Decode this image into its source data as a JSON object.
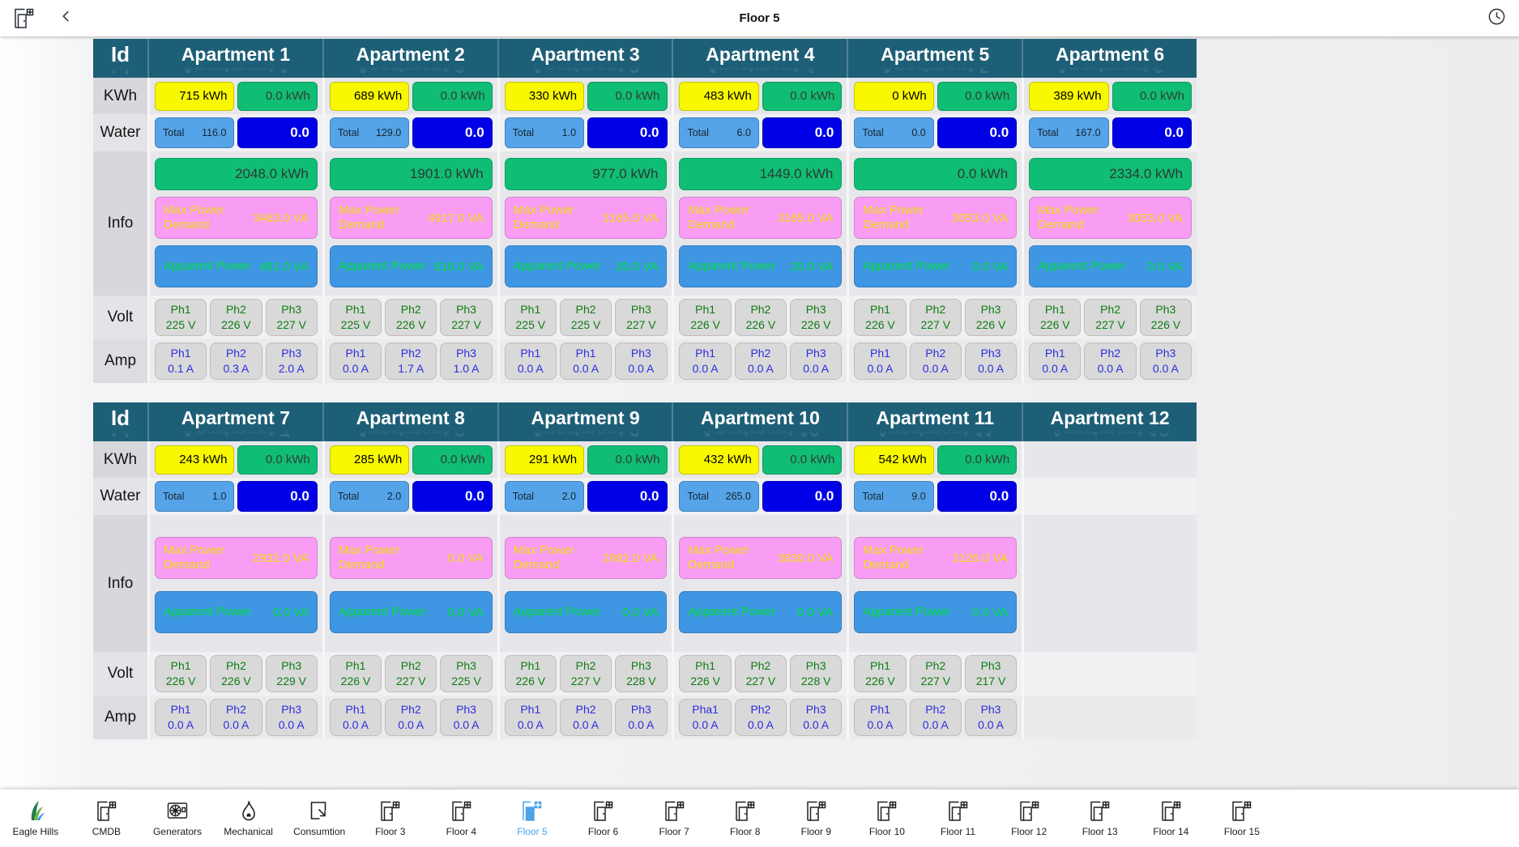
{
  "top_bar": {
    "title": "Floor 5"
  },
  "row_labels": {
    "id": "Id",
    "kwh": "KWh",
    "water": "Water",
    "info": "Info",
    "volt": "Volt",
    "amp": "Amp"
  },
  "labels": {
    "water_total": "Total",
    "max_power": "Max Power Demand",
    "apparent_power": "Apparent Power"
  },
  "colors": {
    "header_teal": "#1e5f78",
    "kwh_yellow": "#f8f800",
    "kwh_green": "#10bd74",
    "water_light_blue": "#55a4e9",
    "water_dark_blue": "#0000e6",
    "max_power_pink": "#f99cf4",
    "max_power_text": "#efdf10",
    "apparent_blue": "#3f96e3",
    "apparent_text": "#00e23c",
    "volt_text": "#0e7d13",
    "amp_text": "#2d2de0",
    "active_nav": "#4da3e8"
  },
  "tables": [
    {
      "has_energy_bar": true,
      "apartments": [
        {
          "name": "Apartment 1",
          "kwh_primary": "715 kWh",
          "kwh_secondary": "0.0 kWh",
          "water_total": "116.0",
          "water_value": "0.0",
          "energy": "2048.0 kWh",
          "max_power": "3463.0 VA",
          "apparent_power": "481.0 VA",
          "volt": [
            [
              "Ph1",
              "225 V"
            ],
            [
              "Ph2",
              "226 V"
            ],
            [
              "Ph3",
              "227 V"
            ]
          ],
          "amp": [
            [
              "Ph1",
              "0.1 A"
            ],
            [
              "Ph2",
              "0.3 A"
            ],
            [
              "Ph3",
              "2.0 A"
            ]
          ]
        },
        {
          "name": "Apartment 2",
          "kwh_primary": "689 kWh",
          "kwh_secondary": "0.0 kWh",
          "water_total": "129.0",
          "water_value": "0.0",
          "energy": "1901.0 kWh",
          "max_power": "4917.0 VA",
          "apparent_power": "616.0 VA",
          "volt": [
            [
              "Ph1",
              "225 V"
            ],
            [
              "Ph2",
              "226 V"
            ],
            [
              "Ph3",
              "227 V"
            ]
          ],
          "amp": [
            [
              "Ph1",
              "0.0 A"
            ],
            [
              "Ph2",
              "1.7 A"
            ],
            [
              "Ph3",
              "1.0 A"
            ]
          ]
        },
        {
          "name": "Apartment 3",
          "kwh_primary": "330 kWh",
          "kwh_secondary": "0.0 kWh",
          "water_total": "1.0",
          "water_value": "0.0",
          "energy": "977.0 kWh",
          "max_power": "3165.0 VA",
          "apparent_power": "20.0 VA",
          "volt": [
            [
              "Ph1",
              "225 V"
            ],
            [
              "Ph2",
              "225 V"
            ],
            [
              "Ph3",
              "227 V"
            ]
          ],
          "amp": [
            [
              "Ph1",
              "0.0 A"
            ],
            [
              "Ph1",
              "0.0 A"
            ],
            [
              "Ph3",
              "0.0 A"
            ]
          ]
        },
        {
          "name": "Apartment 4",
          "kwh_primary": "483 kWh",
          "kwh_secondary": "0.0 kWh",
          "water_total": "6.0",
          "water_value": "0.0",
          "energy": "1449.0 kWh",
          "max_power": "3165.0 VA",
          "apparent_power": "20.0 VA",
          "volt": [
            [
              "Ph1",
              "226 V"
            ],
            [
              "Ph2",
              "226 V"
            ],
            [
              "Ph3",
              "226 V"
            ]
          ],
          "amp": [
            [
              "Ph1",
              "0.0 A"
            ],
            [
              "Ph2",
              "0.0 A"
            ],
            [
              "Ph3",
              "0.0 A"
            ]
          ]
        },
        {
          "name": "Apartment 5",
          "kwh_primary": "0 kWh",
          "kwh_secondary": "0.0 kWh",
          "water_total": "0.0",
          "water_value": "0.0",
          "energy": "0.0 kWh",
          "max_power": "3053.0 VA",
          "apparent_power": "0.0 VA",
          "volt": [
            [
              "Ph1",
              "226 V"
            ],
            [
              "Ph2",
              "227 V"
            ],
            [
              "Ph3",
              "226 V"
            ]
          ],
          "amp": [
            [
              "Ph1",
              "0.0 A"
            ],
            [
              "Ph2",
              "0.0 A"
            ],
            [
              "Ph3",
              "0.0 A"
            ]
          ]
        },
        {
          "name": "Apartment 6",
          "kwh_primary": "389 kWh",
          "kwh_secondary": "0.0 kWh",
          "water_total": "167.0",
          "water_value": "0.0",
          "energy": "2334.0 kWh",
          "max_power": "3053.0 VA",
          "apparent_power": "0.0 VA",
          "volt": [
            [
              "Ph1",
              "226 V"
            ],
            [
              "Ph2",
              "227 V"
            ],
            [
              "Ph3",
              "226 V"
            ]
          ],
          "amp": [
            [
              "Ph1",
              "0.0 A"
            ],
            [
              "Ph2",
              "0.0 A"
            ],
            [
              "Ph3",
              "0.0 A"
            ]
          ]
        }
      ]
    },
    {
      "has_energy_bar": false,
      "apartments": [
        {
          "name": "Apartment 7",
          "kwh_primary": "243 kWh",
          "kwh_secondary": "0.0 kWh",
          "water_total": "1.0",
          "water_value": "0.0",
          "max_power": "2932.0 VA",
          "apparent_power": "0.0 VA",
          "volt": [
            [
              "Ph1",
              "226 V"
            ],
            [
              "Ph2",
              "226 V"
            ],
            [
              "Ph3",
              "229 V"
            ]
          ],
          "amp": [
            [
              "Ph1",
              "0.0 A"
            ],
            [
              "Ph2",
              "0.0 A"
            ],
            [
              "Ph3",
              "0.0 A"
            ]
          ]
        },
        {
          "name": "Apartment 8",
          "kwh_primary": "285 kWh",
          "kwh_secondary": "0.0 kWh",
          "water_total": "2.0",
          "water_value": "0.0",
          "max_power": "0.0 VA",
          "apparent_power": "0.0 VA",
          "volt": [
            [
              "Ph1",
              "226 V"
            ],
            [
              "Ph2",
              "227 V"
            ],
            [
              "Ph3",
              "225 V"
            ]
          ],
          "amp": [
            [
              "Ph1",
              "0.0 A"
            ],
            [
              "Ph2",
              "0.0 A"
            ],
            [
              "Ph3",
              "0.0 A"
            ]
          ]
        },
        {
          "name": "Apartment 9",
          "kwh_primary": "291 kWh",
          "kwh_secondary": "0.0 kWh",
          "water_total": "2.0",
          "water_value": "0.0",
          "max_power": "2982.0 VA",
          "apparent_power": "0.0 VA",
          "volt": [
            [
              "Ph1",
              "226 V"
            ],
            [
              "Ph2",
              "227 V"
            ],
            [
              "Ph3",
              "228 V"
            ]
          ],
          "amp": [
            [
              "Ph1",
              "0.0 A"
            ],
            [
              "Ph2",
              "0.0 A"
            ],
            [
              "Ph3",
              "0.0 A"
            ]
          ]
        },
        {
          "name": "Apartment 10",
          "kwh_primary": "432 kWh",
          "kwh_secondary": "0.0 kWh",
          "water_total": "265.0",
          "water_value": "0.0",
          "max_power": "3830.0 VA",
          "apparent_power": "0.0 VA",
          "volt": [
            [
              "Ph1",
              "226 V"
            ],
            [
              "Ph2",
              "227 V"
            ],
            [
              "Ph3",
              "228 V"
            ]
          ],
          "amp": [
            [
              "Pha1",
              "0.0 A"
            ],
            [
              "Ph2",
              "0.0 A"
            ],
            [
              "Ph3",
              "0.0 A"
            ]
          ]
        },
        {
          "name": "Apartment 11",
          "kwh_primary": "542 kWh",
          "kwh_secondary": "0.0 kWh",
          "water_total": "9.0",
          "water_value": "0.0",
          "max_power": "3126.0 VA",
          "apparent_power": "0.0 VA",
          "volt": [
            [
              "Ph1",
              "226 V"
            ],
            [
              "Ph2",
              "227 V"
            ],
            [
              "Ph3",
              "217 V"
            ]
          ],
          "amp": [
            [
              "Ph1",
              "0.0 A"
            ],
            [
              "Ph2",
              "0.0 A"
            ],
            [
              "Ph3",
              "0.0 A"
            ]
          ]
        },
        {
          "name": "Apartment 12",
          "empty": true
        }
      ]
    }
  ],
  "bottom_nav": {
    "items": [
      {
        "label": "Eagle Hills",
        "icon": "eagle-hills-logo"
      },
      {
        "label": "CMDB",
        "icon": "door"
      },
      {
        "label": "Generators",
        "icon": "generator"
      },
      {
        "label": "Mechanical",
        "icon": "flame"
      },
      {
        "label": "Consumtion",
        "icon": "export-arrow"
      },
      {
        "label": "Floor 3",
        "icon": "door"
      },
      {
        "label": "Floor 4",
        "icon": "door"
      },
      {
        "label": "Floor 5",
        "icon": "door",
        "active": true
      },
      {
        "label": "Floor 6",
        "icon": "door"
      },
      {
        "label": "Floor 7",
        "icon": "door"
      },
      {
        "label": "Floor 8",
        "icon": "door"
      },
      {
        "label": "Floor 9",
        "icon": "door"
      },
      {
        "label": "Floor 10",
        "icon": "door"
      },
      {
        "label": "Floor 11",
        "icon": "door"
      },
      {
        "label": "Floor 12",
        "icon": "door"
      },
      {
        "label": "Floor 13",
        "icon": "door"
      },
      {
        "label": "Floor 14",
        "icon": "door"
      },
      {
        "label": "Floor 15",
        "icon": "door"
      }
    ]
  }
}
